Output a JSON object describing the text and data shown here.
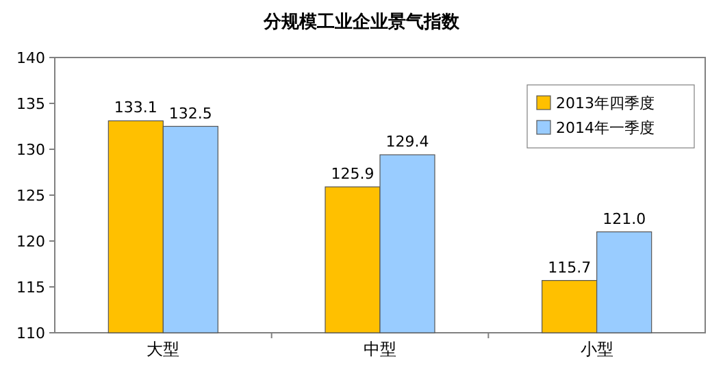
{
  "chart_data": {
    "type": "bar",
    "title": "分规模工业企业景气指数",
    "categories": [
      "大型",
      "中型",
      "小型"
    ],
    "series": [
      {
        "name": "2013年四季度",
        "color": "#ffc000",
        "values": [
          133.1,
          125.9,
          115.7
        ],
        "value_labels": [
          "133.1",
          "125.9",
          "115.7"
        ]
      },
      {
        "name": "2014年一季度",
        "color": "#99ccff",
        "values": [
          132.5,
          129.4,
          121.0
        ],
        "value_labels": [
          "132.5",
          "129.4",
          "121.0"
        ]
      }
    ],
    "ylim": [
      110,
      140
    ],
    "yticks": [
      110,
      115,
      120,
      125,
      130,
      135,
      140
    ],
    "legend": "top right",
    "grid": false
  }
}
